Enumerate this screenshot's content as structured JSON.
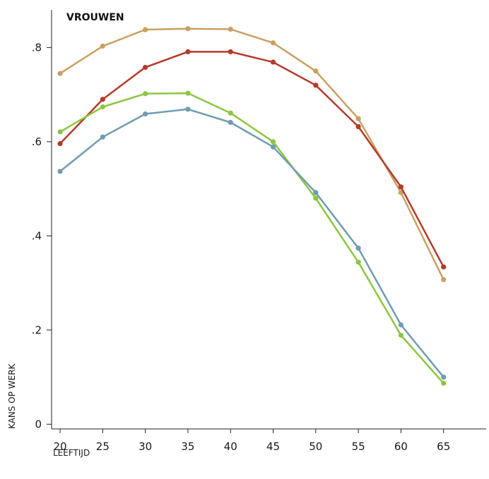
{
  "chart_data": {
    "type": "line",
    "title": "VROUWEN",
    "xlabel": "LEEFTIJD",
    "ylabel": "KANS OP WERK",
    "x": [
      20,
      25,
      30,
      35,
      40,
      45,
      50,
      55,
      60,
      65
    ],
    "x_tick_labels": [
      "20",
      "25",
      "30",
      "35",
      "40",
      "45",
      "50",
      "55",
      "60",
      "65"
    ],
    "xlim": [
      19,
      70
    ],
    "ylim": [
      -0.01,
      0.88
    ],
    "y_ticks": [
      0,
      0.2,
      0.4,
      0.6,
      0.8
    ],
    "y_tick_labels": [
      "0",
      ".2",
      ".4",
      ".6",
      ".8"
    ],
    "grid": false,
    "legend": "none",
    "series": [
      {
        "color": "#c9a063",
        "values": [
          0.745,
          0.803,
          0.838,
          0.84,
          0.839,
          0.81,
          0.75,
          0.649,
          0.492,
          0.307
        ]
      },
      {
        "color": "#b53a2a",
        "values": [
          0.596,
          0.69,
          0.758,
          0.791,
          0.791,
          0.769,
          0.72,
          0.632,
          0.504,
          0.334
        ]
      },
      {
        "color": "#8cc63f",
        "values": [
          0.621,
          0.674,
          0.702,
          0.703,
          0.661,
          0.6,
          0.48,
          0.344,
          0.189,
          0.087
        ]
      },
      {
        "color": "#6f9cb0",
        "values": [
          0.537,
          0.61,
          0.659,
          0.669,
          0.641,
          0.589,
          0.492,
          0.374,
          0.211,
          0.1
        ]
      }
    ]
  }
}
